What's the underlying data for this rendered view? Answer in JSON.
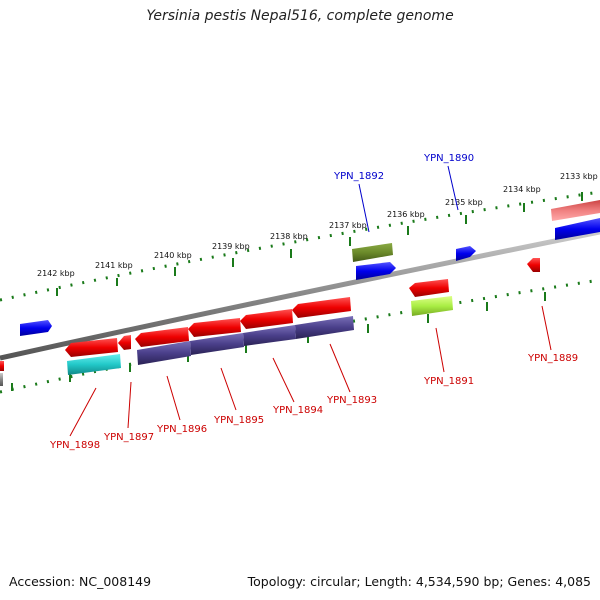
{
  "title": "Yersinia pestis Nepal516, complete genome",
  "footer": {
    "accession": "Accession: NC_008149",
    "topology": "Topology: circular; Length: 4,534,590 bp; Genes: 4,085"
  },
  "kbp_ticks": [
    "2133 kbp",
    "2134 kbp",
    "2135 kbp",
    "2136 kbp",
    "2137 kbp",
    "2138 kbp",
    "2139 kbp",
    "2140 kbp",
    "2141 kbp",
    "2142 kbp"
  ],
  "gene_labels": {
    "ypn1889": "YPN_1889",
    "ypn1890": "YPN_1890",
    "ypn1891": "YPN_1891",
    "ypn1892": "YPN_1892",
    "ypn1893": "YPN_1893",
    "ypn1894": "YPN_1894",
    "ypn1895": "YPN_1895",
    "ypn1896": "YPN_1896",
    "ypn1897": "YPN_1897",
    "ypn1898": "YPN_1898"
  },
  "colors": {
    "forward_gene": "#0000ee",
    "reverse_gene": "#ee0000",
    "backbone": "#808080",
    "tick": "#1a7a1a",
    "cds_purple": "#4a3f8a",
    "cds_cyan": "#22c8c8",
    "cds_olive": "#6b8a2a",
    "cds_lime": "#aaee44",
    "cds_pink": "#f08080"
  }
}
